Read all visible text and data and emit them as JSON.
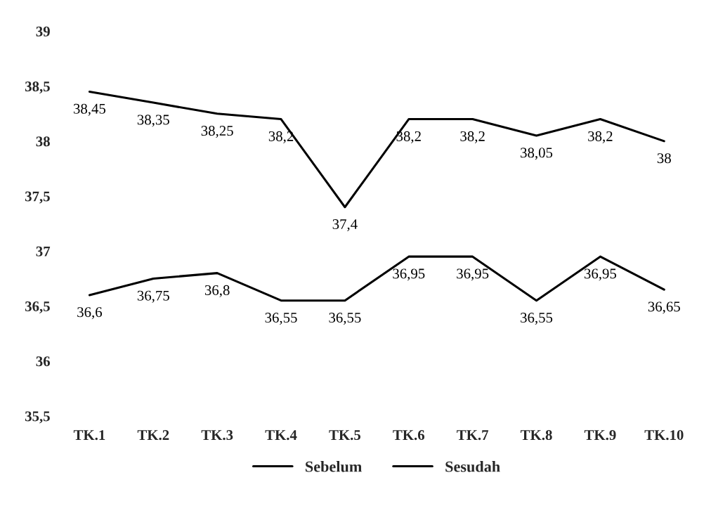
{
  "chart_data": {
    "type": "line",
    "categories": [
      "TK.1",
      "TK.2",
      "TK.3",
      "TK.4",
      "TK.5",
      "TK.6",
      "TK.7",
      "TK.8",
      "TK.9",
      "TK.10"
    ],
    "series": [
      {
        "name": "Sebelum",
        "color": "#000000",
        "values": [
          36.6,
          36.75,
          36.8,
          36.55,
          36.55,
          36.95,
          36.95,
          36.55,
          36.95,
          36.65
        ],
        "value_labels": [
          "36,6",
          "36,75",
          "36,8",
          "36,55",
          "36,55",
          "36,95",
          "36,95",
          "36,55",
          "36,95",
          "36,65"
        ]
      },
      {
        "name": "Sesudah",
        "color": "#000000",
        "values": [
          38.45,
          38.35,
          38.25,
          38.2,
          37.4,
          38.2,
          38.2,
          38.05,
          38.2,
          38
        ],
        "value_labels": [
          "38,45",
          "38,35",
          "38,25",
          "38,2",
          "37,4",
          "38,2",
          "38,2",
          "38,05",
          "38,2",
          "38"
        ]
      }
    ],
    "ylim": [
      35.5,
      39
    ],
    "yticks": [
      {
        "value": 35.5,
        "label": "35,5"
      },
      36,
      {
        "value": 36.5,
        "label": "36,5"
      },
      37,
      {
        "value": 37.5,
        "label": "37,5"
      },
      38,
      {
        "value": 38.5,
        "label": "38,5"
      },
      39
    ],
    "grid": false,
    "legend": "bottom",
    "marker": "none",
    "line_style": "solid"
  }
}
